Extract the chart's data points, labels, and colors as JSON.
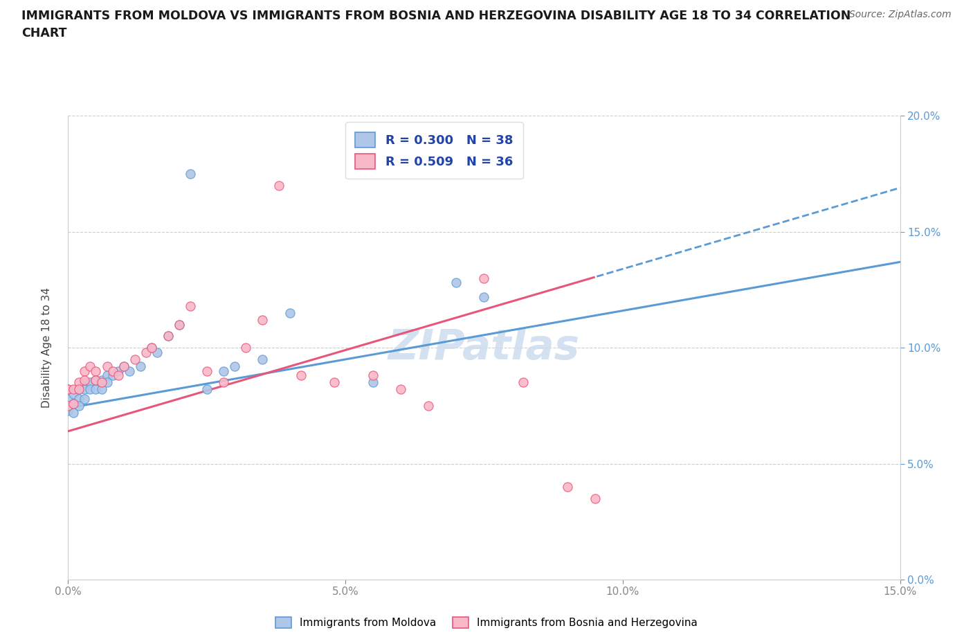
{
  "title_line1": "IMMIGRANTS FROM MOLDOVA VS IMMIGRANTS FROM BOSNIA AND HERZEGOVINA DISABILITY AGE 18 TO 34 CORRELATION",
  "title_line2": "CHART",
  "source": "Source: ZipAtlas.com",
  "ylabel": "Disability Age 18 to 34",
  "xmin": 0.0,
  "xmax": 0.15,
  "ymin": 0.0,
  "ymax": 0.2,
  "Moldova_R": 0.3,
  "Moldova_N": 38,
  "Bosnia_R": 0.509,
  "Bosnia_N": 36,
  "color_moldova": "#aec6e8",
  "color_bosnia": "#f9b8c8",
  "line_color_moldova": "#5b9bd5",
  "line_color_bosnia": "#e8557a",
  "legend_text_color": "#2244aa",
  "watermark_color": "#ccdcee",
  "moldova_x": [
    0.0,
    0.0,
    0.0,
    0.001,
    0.001,
    0.001,
    0.002,
    0.002,
    0.002,
    0.003,
    0.003,
    0.003,
    0.004,
    0.004,
    0.005,
    0.005,
    0.006,
    0.006,
    0.007,
    0.007,
    0.008,
    0.009,
    0.01,
    0.011,
    0.013,
    0.015,
    0.016,
    0.018,
    0.02,
    0.022,
    0.025,
    0.028,
    0.03,
    0.035,
    0.04,
    0.055,
    0.07,
    0.075
  ],
  "moldova_y": [
    0.082,
    0.078,
    0.073,
    0.08,
    0.076,
    0.072,
    0.082,
    0.078,
    0.075,
    0.085,
    0.082,
    0.078,
    0.085,
    0.082,
    0.086,
    0.082,
    0.086,
    0.082,
    0.088,
    0.085,
    0.088,
    0.09,
    0.092,
    0.09,
    0.092,
    0.1,
    0.098,
    0.105,
    0.11,
    0.175,
    0.082,
    0.09,
    0.092,
    0.095,
    0.115,
    0.085,
    0.128,
    0.122
  ],
  "bosnia_x": [
    0.0,
    0.0,
    0.001,
    0.001,
    0.002,
    0.002,
    0.003,
    0.003,
    0.004,
    0.005,
    0.005,
    0.006,
    0.007,
    0.008,
    0.009,
    0.01,
    0.012,
    0.014,
    0.015,
    0.018,
    0.02,
    0.022,
    0.025,
    0.028,
    0.032,
    0.035,
    0.038,
    0.042,
    0.048,
    0.055,
    0.06,
    0.065,
    0.075,
    0.082,
    0.09,
    0.095
  ],
  "bosnia_y": [
    0.082,
    0.075,
    0.082,
    0.076,
    0.085,
    0.082,
    0.09,
    0.086,
    0.092,
    0.09,
    0.086,
    0.085,
    0.092,
    0.09,
    0.088,
    0.092,
    0.095,
    0.098,
    0.1,
    0.105,
    0.11,
    0.118,
    0.09,
    0.085,
    0.1,
    0.112,
    0.17,
    0.088,
    0.085,
    0.088,
    0.082,
    0.075,
    0.13,
    0.085,
    0.04,
    0.035
  ],
  "trend_mol_slope": 0.42,
  "trend_mol_intercept": 0.074,
  "trend_bos_slope": 0.7,
  "trend_bos_intercept": 0.064
}
